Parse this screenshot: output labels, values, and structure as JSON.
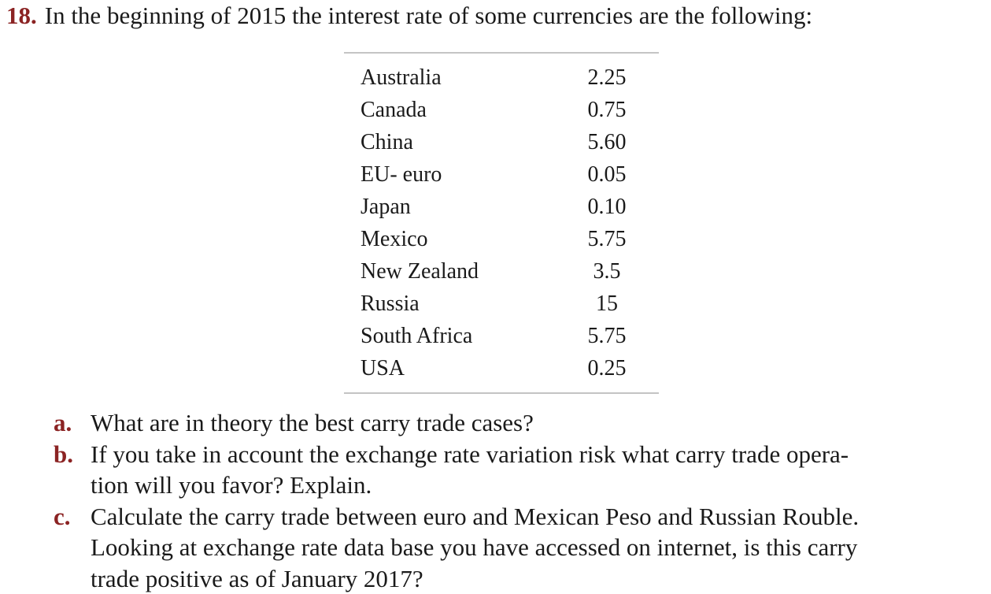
{
  "question": {
    "number": "18.",
    "text": "In the beginning of 2015 the interest rate of some currencies are the following:"
  },
  "table": {
    "rows": [
      {
        "country": "Australia",
        "rate": "2.25"
      },
      {
        "country": "Canada",
        "rate": "0.75"
      },
      {
        "country": "China",
        "rate": "5.60"
      },
      {
        "country": "EU- euro",
        "rate": "0.05"
      },
      {
        "country": "Japan",
        "rate": "0.10"
      },
      {
        "country": "Mexico",
        "rate": "5.75"
      },
      {
        "country": "New Zealand",
        "rate": "3.5"
      },
      {
        "country": "Russia",
        "rate": "15"
      },
      {
        "country": "South Africa",
        "rate": "5.75"
      },
      {
        "country": "USA",
        "rate": "0.25"
      }
    ]
  },
  "subquestions": [
    {
      "letter": "a.",
      "lines": [
        "What are in theory the best carry trade cases?"
      ]
    },
    {
      "letter": "b.",
      "lines": [
        "If you take in account the exchange rate variation risk what carry trade opera-",
        "tion will you favor? Explain."
      ]
    },
    {
      "letter": "c.",
      "lines": [
        "Calculate the carry trade between euro and Mexican Peso and Russian Rouble.",
        "Looking at exchange rate data base you have accessed on internet, is this carry",
        "trade positive as of January 2017?"
      ]
    }
  ]
}
